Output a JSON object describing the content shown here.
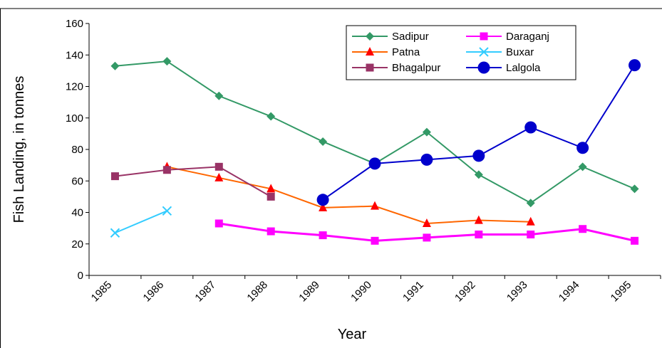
{
  "chart_data": {
    "type": "line",
    "x_label": "Year",
    "y_label": "Fish Landing, in tonnes",
    "categories": [
      "1985",
      "1986",
      "1987",
      "1988",
      "1989",
      "1990",
      "1991",
      "1992",
      "1993",
      "1994",
      "1995"
    ],
    "ylim": [
      0,
      160
    ],
    "yticks": [
      0,
      20,
      40,
      60,
      80,
      100,
      120,
      140,
      160
    ],
    "series": [
      {
        "name": "Sadipur",
        "color": "#339966",
        "marker": "diamond",
        "values": [
          133,
          136,
          114,
          101,
          85,
          71,
          91,
          64,
          46,
          69,
          55
        ]
      },
      {
        "name": "Patna",
        "color": "#ff6600",
        "marker_color": "#ff0000",
        "marker": "triangle",
        "values": [
          null,
          69,
          62,
          55,
          43,
          44,
          33,
          35,
          34,
          null,
          null
        ]
      },
      {
        "name": "Bhagalpur",
        "color": "#993366",
        "marker": "square",
        "values": [
          63,
          67,
          69,
          50,
          null,
          null,
          null,
          null,
          null,
          null,
          null
        ]
      },
      {
        "name": "Daraganj",
        "color": "#ff00ff",
        "marker": "square",
        "values": [
          null,
          null,
          33,
          28,
          25.5,
          22,
          24,
          26,
          26,
          29.5,
          22
        ]
      },
      {
        "name": "Buxar",
        "color": "#33ccff",
        "marker": "x",
        "values": [
          27,
          41,
          null,
          null,
          null,
          null,
          null,
          null,
          null,
          null,
          null
        ]
      },
      {
        "name": "Lalgola",
        "color": "#0000cc",
        "marker": "circle",
        "values": [
          null,
          null,
          null,
          null,
          48,
          71,
          73.5,
          76,
          94,
          81,
          133.5
        ]
      }
    ],
    "legend": "top-right",
    "legend_columns": 2
  }
}
